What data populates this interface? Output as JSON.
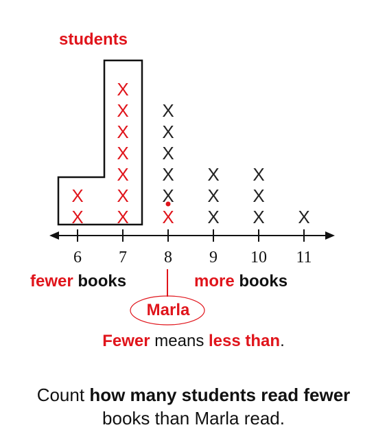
{
  "dot_plot": {
    "axis_ticks": [
      "6",
      "7",
      "8",
      "9",
      "10",
      "11"
    ],
    "mark_symbol": "X",
    "counts": [
      {
        "value": 6,
        "count": 2,
        "highlight": true
      },
      {
        "value": 7,
        "count": 7,
        "highlight": true
      },
      {
        "value": 8,
        "count": 6,
        "highlight": false,
        "marla_mark": true
      },
      {
        "value": 9,
        "count": 3,
        "highlight": false
      },
      {
        "value": 10,
        "count": 3,
        "highlight": false
      },
      {
        "value": 11,
        "count": 1,
        "highlight": false
      }
    ],
    "colors": {
      "highlight": "#e0141b",
      "normal": "#222222"
    }
  },
  "annotations": {
    "students": "students",
    "fewer_word": "fewer",
    "fewer_books": "books",
    "more_word": "more",
    "more_books": "books",
    "marla": "Marla"
  },
  "definition": {
    "fewer": "Fewer",
    "means": "means",
    "less_than": "less than",
    "period": "."
  },
  "question": {
    "part1": "Count",
    "part2_bold": "how many students read fewer",
    "line2": "books than Marla read."
  }
}
